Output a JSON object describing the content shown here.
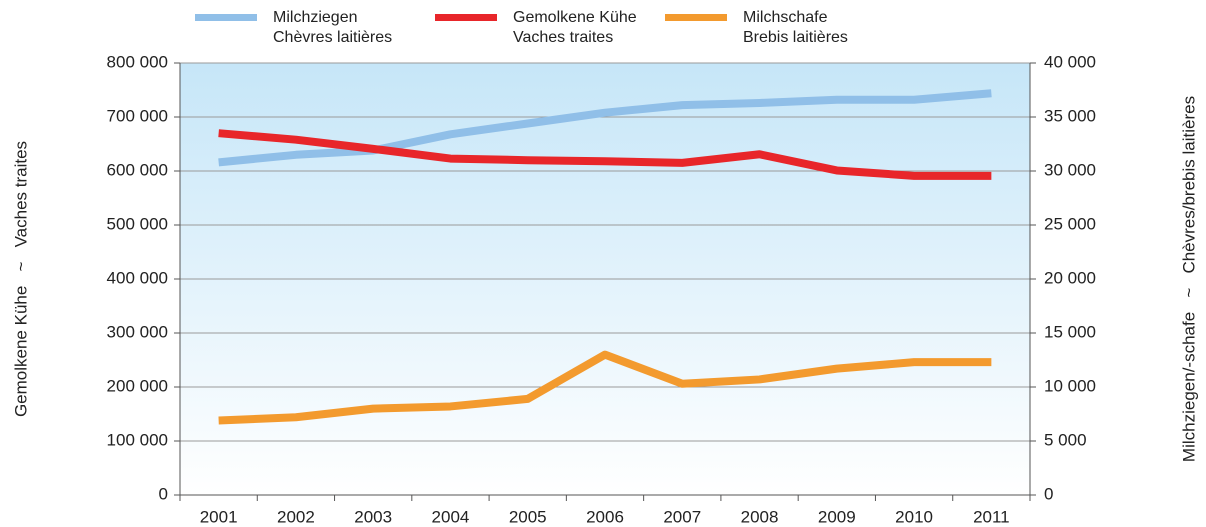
{
  "chart_data": {
    "type": "line",
    "ylabel": "Gemolkene Kühe   ~   Vaches traites",
    "y2label": "Milchziegen/-schafe   ~   Chèvres/brebis laitières",
    "categories": [
      "2001",
      "2002",
      "2003",
      "2004",
      "2005",
      "2006",
      "2007",
      "2008",
      "2009",
      "2010",
      "2011"
    ],
    "series": [
      {
        "name": "Milchziegen\nChèvres laitières",
        "color": "#90bfe8",
        "axis": "y2",
        "values": [
          30800,
          31500,
          31900,
          33400,
          34400,
          35400,
          36100,
          36300,
          36600,
          36600,
          37200
        ]
      },
      {
        "name": "Gemolkene Kühe\nVaches traites",
        "color": "#e8262a",
        "values": [
          670000,
          658000,
          641000,
          623000,
          620000,
          618000,
          615000,
          631000,
          601000,
          591000,
          591000
        ]
      },
      {
        "name": "Milchschafe\nBrebis laitières",
        "color": "#f39a2e",
        "axis": "y2",
        "values": [
          6900,
          7200,
          8000,
          8200,
          8900,
          13000,
          10300,
          10700,
          11700,
          12300,
          12300
        ]
      }
    ],
    "ylim": [
      0,
      800000
    ],
    "yticks": [
      0,
      {
        "value": 100000,
        "label": "100 000"
      },
      {
        "value": 200000,
        "label": "200 000"
      },
      {
        "value": 300000,
        "label": "300 000"
      },
      {
        "value": 400000,
        "label": "400 000"
      },
      {
        "value": 500000,
        "label": "500 000"
      },
      {
        "value": 600000,
        "label": "600 000"
      },
      {
        "value": 700000,
        "label": "700 000"
      },
      {
        "value": 800000,
        "label": "800 000"
      }
    ],
    "y2lim": [
      0,
      40000
    ],
    "y2ticks": [
      0,
      {
        "value": 5000,
        "label": "5 000"
      },
      {
        "value": 10000,
        "label": "10 000"
      },
      {
        "value": 15000,
        "label": "15 000"
      },
      {
        "value": 20000,
        "label": "20 000"
      },
      {
        "value": 25000,
        "label": "25 000"
      },
      {
        "value": 30000,
        "label": "30 000"
      },
      {
        "value": 35000,
        "label": "35 000"
      },
      {
        "value": 40000,
        "label": "40 000"
      }
    ],
    "grid": true
  }
}
